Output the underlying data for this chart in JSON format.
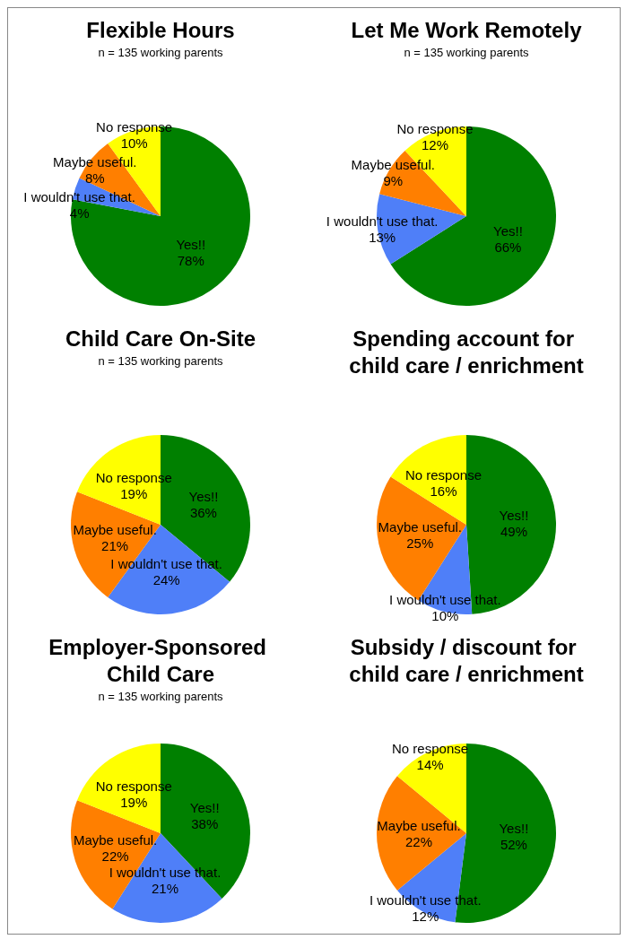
{
  "chart_data": [
    {
      "type": "pie",
      "title": "Flexible Hours",
      "subtitle": "n = 135 working parents",
      "categories": [
        "Yes!!",
        "I wouldn't use that.",
        "Maybe useful.",
        "No response"
      ],
      "values": [
        78,
        4,
        8,
        10
      ],
      "value_labels": [
        "78%",
        "4%",
        "8%",
        "10%"
      ],
      "colors": [
        "#008000",
        "#4f7ff8",
        "#ff7f00",
        "#ffff00"
      ]
    },
    {
      "type": "pie",
      "title": "Let Me Work Remotely",
      "subtitle": "n = 135 working parents",
      "categories": [
        "Yes!!",
        "I wouldn't use that.",
        "Maybe useful.",
        "No response"
      ],
      "values": [
        66,
        13,
        9,
        12
      ],
      "value_labels": [
        "66%",
        "13%",
        "9%",
        "12%"
      ],
      "colors": [
        "#008000",
        "#4f7ff8",
        "#ff7f00",
        "#ffff00"
      ]
    },
    {
      "type": "pie",
      "title": "Child Care On-Site",
      "subtitle": "n = 135 working parents",
      "categories": [
        "Yes!!",
        "I wouldn't use that.",
        "Maybe useful.",
        "No response"
      ],
      "values": [
        36,
        24,
        21,
        19
      ],
      "value_labels": [
        "36%",
        "24%",
        "21%",
        "19%"
      ],
      "colors": [
        "#008000",
        "#4f7ff8",
        "#ff7f00",
        "#ffff00"
      ]
    },
    {
      "type": "pie",
      "title": "Spending account for child care / enrichment",
      "categories": [
        "Yes!!",
        "I wouldn't use that.",
        "Maybe useful.",
        "No response"
      ],
      "values": [
        49,
        10,
        25,
        16
      ],
      "value_labels": [
        "49%",
        "10%",
        "25%",
        "16%"
      ],
      "colors": [
        "#008000",
        "#4f7ff8",
        "#ff7f00",
        "#ffff00"
      ]
    },
    {
      "type": "pie",
      "title": "Employer-Sponsored Child Care",
      "subtitle": "n = 135 working parents",
      "categories": [
        "Yes!!",
        "I wouldn't use that.",
        "Maybe useful.",
        "No response"
      ],
      "values": [
        38,
        21,
        22,
        19
      ],
      "value_labels": [
        "38%",
        "21%",
        "22%",
        "19%"
      ],
      "colors": [
        "#008000",
        "#4f7ff8",
        "#ff7f00",
        "#ffff00"
      ]
    },
    {
      "type": "pie",
      "title": "Subsidy / discount for child care / enrichment",
      "categories": [
        "Yes!!",
        "I wouldn't use that.",
        "Maybe useful.",
        "No response"
      ],
      "values": [
        52,
        12,
        22,
        14
      ],
      "value_labels": [
        "52%",
        "12%",
        "22%",
        "14%"
      ],
      "colors": [
        "#008000",
        "#4f7ff8",
        "#ff7f00",
        "#ffff00"
      ]
    }
  ]
}
